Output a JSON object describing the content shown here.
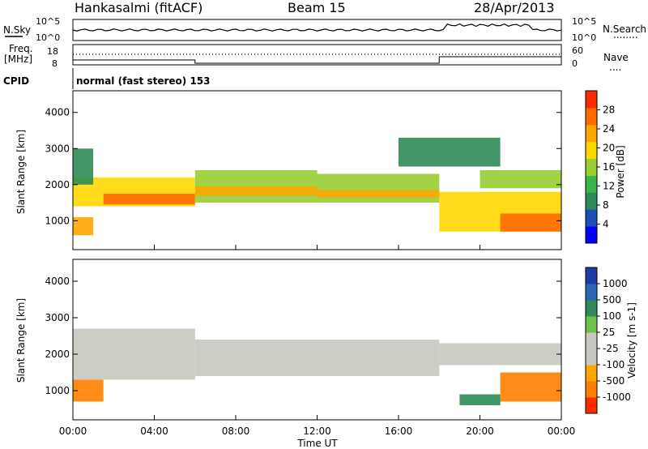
{
  "header": {
    "station": "Hankasalmi (fitACF)",
    "beam": "Beam 15",
    "date": "28/Apr/2013",
    "mode": "normal (fast stereo) 153"
  },
  "side_labels": {
    "nsky": "N.Sky",
    "nsearch": "N.Search",
    "nsearch_dots": "........",
    "freq": "Freq.",
    "mhz": "[MHz]",
    "nave": "Nave",
    "nave_dots": "....",
    "cpid": "CPID"
  },
  "small_axes": {
    "noise_left": [
      "10^5",
      "10^0"
    ],
    "noise_right": [
      "10^5",
      "10^0"
    ],
    "freq_left": [
      "18",
      "8"
    ],
    "nave_right": [
      "60",
      "0"
    ]
  },
  "colors": {
    "power_scale": [
      "#0000ff",
      "#1a4fb5",
      "#2e8b57",
      "#39b54a",
      "#9acd32",
      "#ffd700",
      "#ffa500",
      "#ff6a00",
      "#ff2a00"
    ],
    "velocity_scale": [
      "#1f3aa6",
      "#2a66b3",
      "#2e8b57",
      "#6cc24a",
      "#c8c8c0",
      "#c8c8c0",
      "#ffa500",
      "#ff7f00",
      "#ff2a00"
    ]
  },
  "chart_data": [
    {
      "type": "heatmap",
      "title": "Power",
      "xlabel": "",
      "ylabel": "Slant Range [km]",
      "y_ticks": [
        "1000",
        "2000",
        "3000",
        "4000"
      ],
      "ylim": [
        200,
        4600
      ],
      "colorbar_label": "Power [dB]",
      "colorbar_ticks": [
        "4",
        "8",
        "12",
        "16",
        "20",
        "24",
        "28"
      ],
      "colorbar_range": [
        0,
        30
      ],
      "regions": [
        {
          "t": [
            0.0,
            1.0
          ],
          "r": [
            600,
            1100
          ],
          "v": 24
        },
        {
          "t": [
            0.0,
            6.0
          ],
          "r": [
            1400,
            2200
          ],
          "v": 18
        },
        {
          "t": [
            1.5,
            6.0
          ],
          "r": [
            1450,
            1750
          ],
          "v": 26
        },
        {
          "t": [
            6.0,
            12.0
          ],
          "r": [
            1500,
            2400
          ],
          "v": 16
        },
        {
          "t": [
            6.0,
            12.0
          ],
          "r": [
            1700,
            1950
          ],
          "v": 22
        },
        {
          "t": [
            12.0,
            18.0
          ],
          "r": [
            1500,
            2300
          ],
          "v": 15
        },
        {
          "t": [
            12.0,
            18.0
          ],
          "r": [
            1650,
            1850
          ],
          "v": 21
        },
        {
          "t": [
            18.0,
            24.0
          ],
          "r": [
            700,
            1800
          ],
          "v": 20
        },
        {
          "t": [
            21.0,
            24.0
          ],
          "r": [
            700,
            1200
          ],
          "v": 28
        },
        {
          "t": [
            20.0,
            24.0
          ],
          "r": [
            1900,
            2400
          ],
          "v": 14
        },
        {
          "t": [
            0.0,
            1.0
          ],
          "r": [
            2000,
            3000
          ],
          "v": 6
        },
        {
          "t": [
            16.0,
            21.0
          ],
          "r": [
            2500,
            3300
          ],
          "v": 6
        }
      ]
    },
    {
      "type": "heatmap",
      "title": "Velocity",
      "xlabel": "Time UT",
      "ylabel": "Slant Range [km]",
      "x_ticks": [
        "00:00",
        "04:00",
        "08:00",
        "12:00",
        "16:00",
        "20:00",
        "00:00"
      ],
      "xlim": [
        0,
        24
      ],
      "y_ticks": [
        "1000",
        "2000",
        "3000",
        "4000"
      ],
      "ylim": [
        200,
        4600
      ],
      "colorbar_label": "Velocity [m s-1]",
      "colorbar_ticks": [
        "1000",
        "500",
        "100",
        "25",
        "-25",
        "-100",
        "-500",
        "-1000"
      ],
      "regions": [
        {
          "t": [
            0.0,
            6.0
          ],
          "r": [
            1300,
            2700
          ],
          "v": 0
        },
        {
          "t": [
            0.0,
            1.5
          ],
          "r": [
            700,
            1300
          ],
          "v": -300
        },
        {
          "t": [
            6.0,
            18.0
          ],
          "r": [
            1400,
            2400
          ],
          "v": 0
        },
        {
          "t": [
            18.0,
            24.0
          ],
          "r": [
            1700,
            2300
          ],
          "v": 0
        },
        {
          "t": [
            21.0,
            24.0
          ],
          "r": [
            700,
            1500
          ],
          "v": -300
        },
        {
          "t": [
            19.0,
            21.0
          ],
          "r": [
            600,
            900
          ],
          "v": 150
        }
      ]
    }
  ]
}
